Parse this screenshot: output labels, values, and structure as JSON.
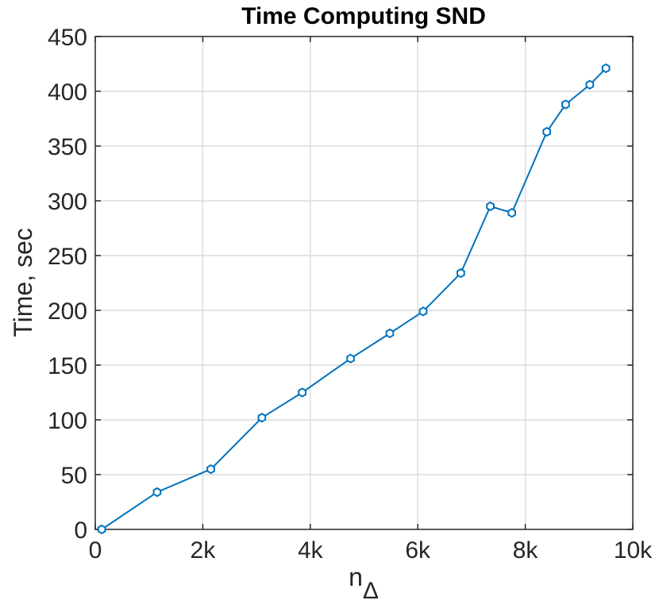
{
  "chart_data": {
    "type": "line",
    "title": "Time Computing SND",
    "xlabel": "n",
    "xlabel_subscript": "Δ",
    "ylabel": "Time, sec",
    "xlim": [
      0,
      10000
    ],
    "ylim": [
      0,
      450
    ],
    "x_ticks": [
      0,
      2000,
      4000,
      6000,
      8000,
      10000
    ],
    "x_tick_labels": [
      "0",
      "2k",
      "4k",
      "6k",
      "8k",
      "10k"
    ],
    "y_ticks": [
      0,
      50,
      100,
      150,
      200,
      250,
      300,
      350,
      400,
      450
    ],
    "y_tick_labels": [
      "0",
      "50",
      "100",
      "150",
      "200",
      "250",
      "300",
      "350",
      "400",
      "450"
    ],
    "grid": true,
    "series": [
      {
        "color": "#0072bd",
        "marker": "hexagon",
        "x": [
          120,
          1150,
          2150,
          3100,
          3850,
          4750,
          5480,
          6100,
          6800,
          7350,
          7750,
          8400,
          8750,
          9200,
          9500
        ],
        "y": [
          0,
          34,
          55,
          102,
          125,
          156,
          179,
          199,
          234,
          295,
          289,
          363,
          388,
          406,
          421
        ]
      }
    ]
  }
}
